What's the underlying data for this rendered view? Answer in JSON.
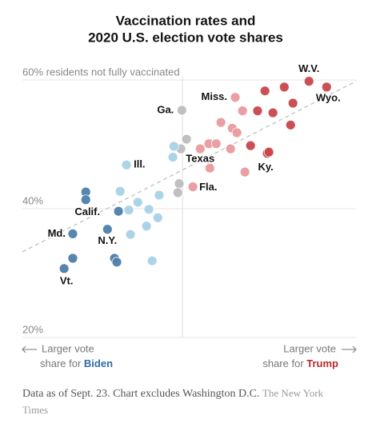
{
  "chart_data": {
    "type": "scatter",
    "title": [
      "Vaccination rates and",
      "2020 U.S. election vote shares"
    ],
    "xlim": [
      -48,
      52
    ],
    "ylim": [
      20,
      60
    ],
    "yticks": [
      {
        "value": 60,
        "label": "60% residents not fully vaccinated"
      },
      {
        "value": 40,
        "label": "40%"
      },
      {
        "value": 20,
        "label": "20%"
      }
    ],
    "grid": true,
    "trend_line": {
      "x": [
        -48,
        52
      ],
      "y": [
        33.3,
        59.8
      ],
      "color": "#bbbbbb"
    },
    "series": [
      {
        "color": "#c9474c",
        "x": [
          37.9,
          43.2,
          30.5,
          24.7,
          33.1,
          22.5,
          27.1,
          32.4,
          20.4,
          25.4,
          25.9
        ],
        "y": [
          59.8,
          58.9,
          58.9,
          58.3,
          56.4,
          55.2,
          54.9,
          53.0,
          49.8,
          48.6,
          48.8
        ],
        "labels": [
          "W.V.",
          "Wyo.",
          null,
          null,
          null,
          null,
          null,
          null,
          null,
          "Ky.",
          null
        ]
      },
      {
        "color": "#e99a9e",
        "x": [
          15.8,
          18.0,
          11.5,
          14.9,
          16.3,
          5.3,
          7.9,
          10.1,
          14.4,
          8.2,
          18.7,
          3.1
        ],
        "y": [
          57.3,
          55.2,
          53.4,
          52.5,
          51.8,
          49.3,
          50.1,
          50.1,
          49.3,
          46.3,
          45.7,
          43.4
        ],
        "labels": [
          "Miss.",
          null,
          null,
          null,
          null,
          "Texas",
          null,
          null,
          null,
          null,
          null,
          "Fla."
        ]
      },
      {
        "color": "#bdbdbd",
        "x": [
          -0.2,
          1.2,
          -0.5,
          -1.0,
          -1.4
        ],
        "y": [
          55.3,
          50.8,
          49.3,
          43.9,
          42.5
        ],
        "labels": [
          "Ga.",
          null,
          null,
          null,
          null
        ]
      },
      {
        "color": "#a8d2e6",
        "x": [
          -2.6,
          -2.9,
          -16.8,
          -18.7,
          -7.0,
          -13.4,
          -16.1,
          -10.1,
          -7.4,
          -10.8,
          -15.6,
          -9.1
        ],
        "y": [
          49.7,
          48.0,
          46.8,
          42.7,
          42.1,
          41.0,
          39.8,
          39.9,
          38.6,
          37.3,
          36.0,
          31.9
        ],
        "labels": [
          null,
          null,
          "Ill.",
          null,
          null,
          null,
          null,
          null,
          null,
          null,
          null,
          null
        ]
      },
      {
        "color": "#4e80a9",
        "x": [
          -29.0,
          -29.0,
          -19.2,
          -22.5,
          -32.9,
          -20.4,
          -19.7,
          -32.9,
          -35.5
        ],
        "y": [
          42.6,
          41.4,
          39.6,
          36.8,
          36.1,
          32.3,
          31.7,
          32.3,
          30.7
        ],
        "labels": [
          null,
          "Calif.",
          null,
          "N.Y.",
          "Md.",
          null,
          null,
          null,
          "Vt."
        ]
      }
    ],
    "x_left_label": {
      "line1": "Larger vote",
      "line2": "share for ",
      "party": "Biden",
      "party_color": "#2f6aa3"
    },
    "x_right_label": {
      "line1": "Larger vote",
      "line2": "share for ",
      "party": "Trump",
      "party_color": "#b8282e"
    }
  },
  "footer": {
    "note": "Data as of Sept. 23. Chart excludes Washington D.C.",
    "source": "The New York Times"
  }
}
